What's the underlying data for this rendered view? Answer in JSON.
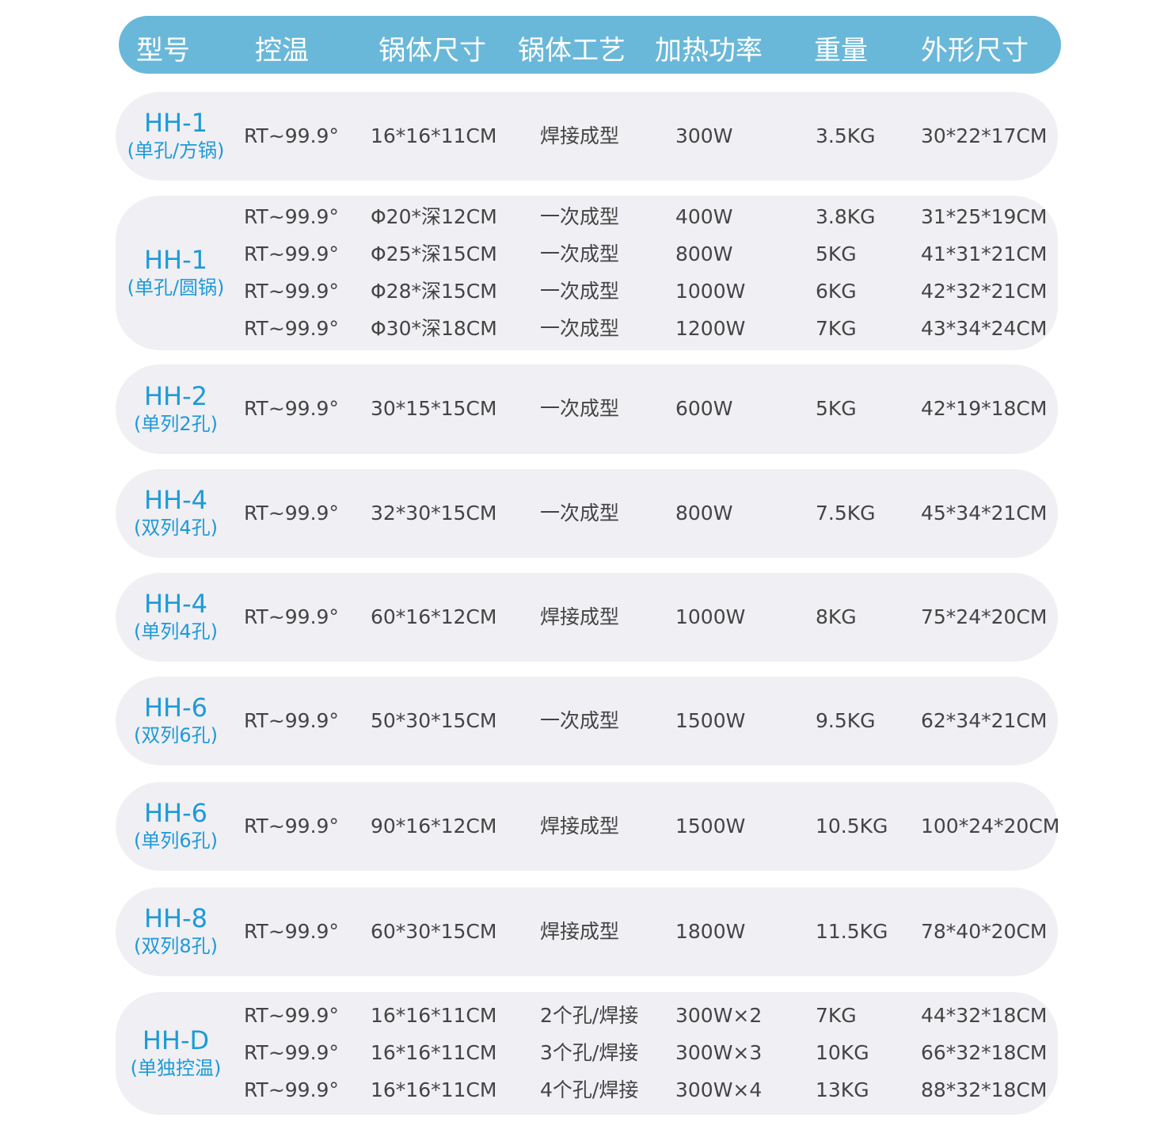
{
  "header": [
    "型号",
    "控温",
    "锅体尺寸",
    "锅体工艺",
    "加热功率",
    "重量",
    "外形尺寸"
  ],
  "colors": {
    "header_bg": "#6ab8d9",
    "row_bg": "#f0eff3",
    "model_text": "#1d9ad8",
    "cell_text": "#444444"
  },
  "rows": [
    {
      "model": "HH-1",
      "sub": "(单孔/方锅)",
      "lines": [
        [
          "RT~99.9°",
          "16*16*11CM",
          "焊接成型",
          "300W",
          "3.5KG",
          "30*22*17CM"
        ]
      ]
    },
    {
      "model": "HH-1",
      "sub": "(单孔/圆锅)",
      "lines": [
        [
          "RT~99.9°",
          "Φ20*深12CM",
          "一次成型",
          "400W",
          "3.8KG",
          "31*25*19CM"
        ],
        [
          "RT~99.9°",
          "Φ25*深15CM",
          "一次成型",
          "800W",
          "5KG",
          "41*31*21CM"
        ],
        [
          "RT~99.9°",
          "Φ28*深15CM",
          "一次成型",
          "1000W",
          "6KG",
          "42*32*21CM"
        ],
        [
          "RT~99.9°",
          "Φ30*深18CM",
          "一次成型",
          "1200W",
          "7KG",
          "43*34*24CM"
        ]
      ]
    },
    {
      "model": "HH-2",
      "sub": "(单列2孔)",
      "lines": [
        [
          "RT~99.9°",
          "30*15*15CM",
          "一次成型",
          "600W",
          "5KG",
          "42*19*18CM"
        ]
      ]
    },
    {
      "model": "HH-4",
      "sub": "(双列4孔)",
      "lines": [
        [
          "RT~99.9°",
          "32*30*15CM",
          "一次成型",
          "800W",
          "7.5KG",
          "45*34*21CM"
        ]
      ]
    },
    {
      "model": "HH-4",
      "sub": "(单列4孔)",
      "lines": [
        [
          "RT~99.9°",
          "60*16*12CM",
          "焊接成型",
          "1000W",
          "8KG",
          "75*24*20CM"
        ]
      ]
    },
    {
      "model": "HH-6",
      "sub": "(双列6孔)",
      "lines": [
        [
          "RT~99.9°",
          "50*30*15CM",
          "一次成型",
          "1500W",
          "9.5KG",
          "62*34*21CM"
        ]
      ]
    },
    {
      "model": "HH-6",
      "sub": "(单列6孔)",
      "lines": [
        [
          "RT~99.9°",
          "90*16*12CM",
          "焊接成型",
          "1500W",
          "10.5KG",
          "100*24*20CM"
        ]
      ]
    },
    {
      "model": "HH-8",
      "sub": "(双列8孔)",
      "lines": [
        [
          "RT~99.9°",
          "60*30*15CM",
          "焊接成型",
          "1800W",
          "11.5KG",
          "78*40*20CM"
        ]
      ]
    },
    {
      "model": "HH-D",
      "sub": "(单独控温)",
      "lines": [
        [
          "RT~99.9°",
          "16*16*11CM",
          "2个孔/焊接",
          "300W×2",
          "7KG",
          "44*32*18CM"
        ],
        [
          "RT~99.9°",
          "16*16*11CM",
          "3个孔/焊接",
          "300W×3",
          "10KG",
          "66*32*18CM"
        ],
        [
          "RT~99.9°",
          "16*16*11CM",
          "4个孔/焊接",
          "300W×4",
          "13KG",
          "88*32*18CM"
        ]
      ]
    }
  ]
}
